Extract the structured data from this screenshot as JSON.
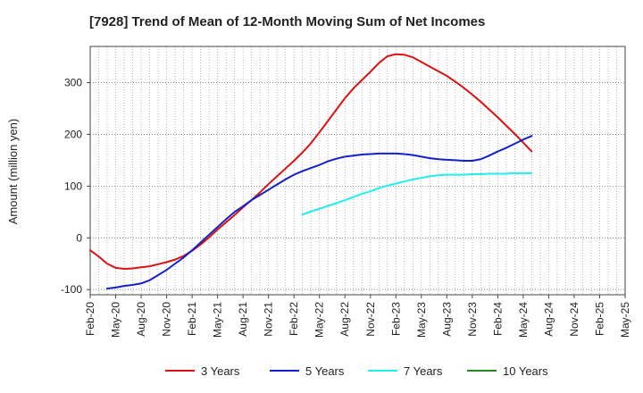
{
  "chart_data": {
    "type": "line",
    "title": "[7928]  Trend of Mean of 12-Month Moving Sum of Net Incomes",
    "ylabel": "Amount (million yen)",
    "xlabel": "",
    "ylim": [
      -110,
      370
    ],
    "yticks": [
      -100,
      0,
      100,
      200,
      300
    ],
    "grid": true,
    "legend_position": "bottom",
    "x_categories": [
      "Feb-20",
      "May-20",
      "Aug-20",
      "Nov-20",
      "Feb-21",
      "May-21",
      "Aug-21",
      "Nov-21",
      "Feb-22",
      "May-22",
      "Aug-22",
      "Nov-22",
      "Feb-23",
      "May-23",
      "Aug-23",
      "Nov-23",
      "Feb-24",
      "May-24",
      "Aug-24",
      "Nov-24",
      "Feb-25",
      "May-25"
    ],
    "series": [
      {
        "name": "3 Years",
        "color": "#dd1111",
        "values": [
          -24,
          -36,
          -50,
          -58,
          -60,
          -59,
          -57,
          -55,
          -51,
          -47,
          -42,
          -35,
          -25,
          -13,
          1,
          16,
          30,
          44,
          59,
          73,
          88,
          104,
          119,
          134,
          149,
          165,
          183,
          204,
          226,
          248,
          270,
          289,
          305,
          321,
          338,
          351,
          355,
          354,
          349,
          340,
          331,
          322,
          313,
          302,
          290,
          277,
          263,
          248,
          233,
          217,
          201,
          184,
          167
        ],
        "start": 0
      },
      {
        "name": "5 Years",
        "color": "#1122cc",
        "values": [
          -98,
          -96,
          -93,
          -91,
          -88,
          -82,
          -72,
          -62,
          -50,
          -38,
          -24,
          -9,
          6,
          21,
          36,
          50,
          61,
          73,
          83,
          93,
          103,
          113,
          122,
          129,
          135,
          141,
          148,
          153,
          157,
          159,
          161,
          162,
          163,
          163,
          163,
          162,
          160,
          157,
          154,
          152,
          151,
          150,
          149,
          149,
          152,
          159,
          167,
          174,
          182,
          190,
          197
        ],
        "start": 2
      },
      {
        "name": "7 Years",
        "color": "#22eeee",
        "values": [
          45,
          51,
          56,
          62,
          67,
          73,
          79,
          85,
          90,
          96,
          101,
          105,
          109,
          113,
          116,
          119,
          121,
          122,
          122,
          122,
          123,
          123,
          124,
          124,
          124,
          125,
          125,
          125
        ],
        "start": 25
      },
      {
        "name": "10 Years",
        "color": "#228822",
        "values": [],
        "start": 0
      }
    ]
  }
}
